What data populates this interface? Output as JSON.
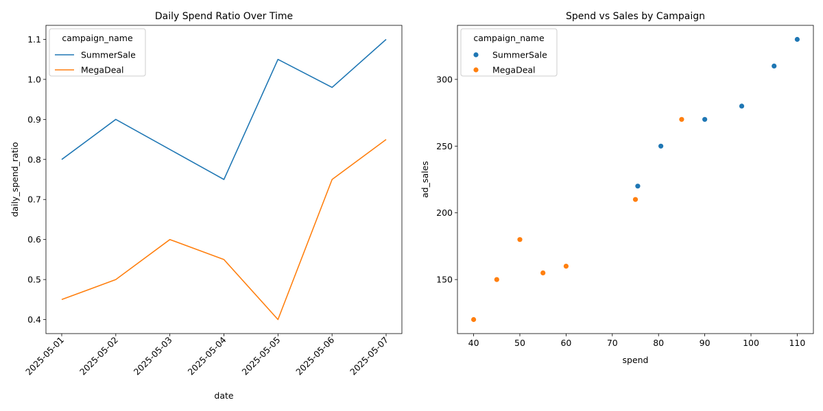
{
  "chart_data": [
    {
      "type": "line",
      "title": "Daily Spend Ratio Over Time",
      "xlabel": "date",
      "ylabel": "daily_spend_ratio",
      "x": [
        "2025-05-01",
        "2025-05-02",
        "2025-05-03",
        "2025-05-04",
        "2025-05-05",
        "2025-05-06",
        "2025-05-07"
      ],
      "yticks": [
        "0.4",
        "0.5",
        "0.6",
        "0.7",
        "0.8",
        "0.9",
        "1.0",
        "1.1"
      ],
      "ylim": [
        0.365,
        1.135
      ],
      "legend": {
        "title": "campaign_name",
        "placement": "top-left"
      },
      "grid": false,
      "series": [
        {
          "name": "SummerSale",
          "color": "#1f77b4",
          "values": [
            0.8,
            0.9,
            0.825,
            0.75,
            1.05,
            0.98,
            1.1
          ]
        },
        {
          "name": "MegaDeal",
          "color": "#ff7f0e",
          "values": [
            0.45,
            0.5,
            0.6,
            0.55,
            0.4,
            0.75,
            0.85
          ]
        }
      ]
    },
    {
      "type": "scatter",
      "title": "Spend vs Sales by Campaign",
      "xlabel": "spend",
      "ylabel": "ad_sales",
      "xticks": [
        "40",
        "50",
        "60",
        "70",
        "80",
        "90",
        "100",
        "110"
      ],
      "yticks": [
        "150",
        "200",
        "250",
        "300"
      ],
      "xlim": [
        36.5,
        113.5
      ],
      "ylim": [
        109.5,
        340.5
      ],
      "legend": {
        "title": "campaign_name",
        "placement": "top-left"
      },
      "grid": false,
      "series": [
        {
          "name": "SummerSale",
          "color": "#1f77b4",
          "points": [
            [
              75.5,
              220
            ],
            [
              80.5,
              250
            ],
            [
              90,
              270
            ],
            [
              98,
              280
            ],
            [
              105,
              310
            ],
            [
              110,
              330
            ]
          ]
        },
        {
          "name": "MegaDeal",
          "color": "#ff7f0e",
          "points": [
            [
              40,
              120
            ],
            [
              45,
              150
            ],
            [
              50,
              180
            ],
            [
              55,
              155
            ],
            [
              60,
              160
            ],
            [
              75,
              210
            ],
            [
              85,
              270
            ]
          ]
        }
      ]
    }
  ]
}
